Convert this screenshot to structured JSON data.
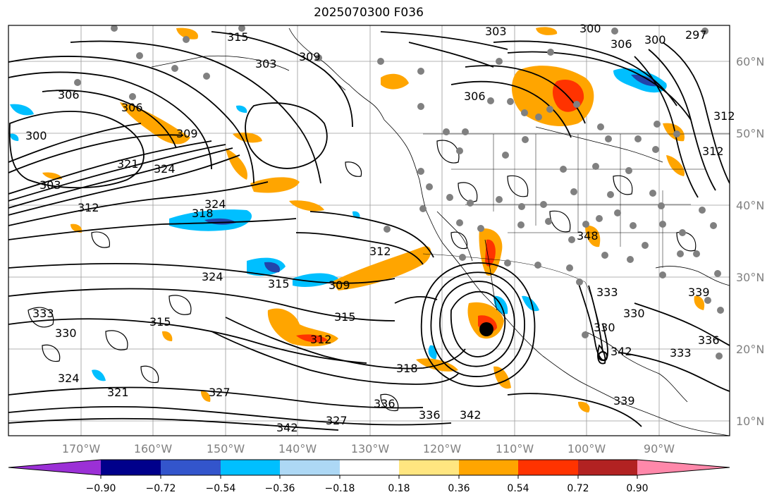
{
  "title": "2025070300 F036",
  "lon_labels": [
    "170°W",
    "160°W",
    "150°W",
    "140°W",
    "130°W",
    "120°W",
    "110°W",
    "100°W",
    "90°W"
  ],
  "lat_labels": [
    "60°N",
    "50°N",
    "40°N",
    "30°N",
    "20°N",
    "10°N"
  ],
  "colorbar": {
    "tick_labels": [
      "−0.90",
      "−0.72",
      "−0.54",
      "−0.36",
      "−0.18",
      "0.18",
      "0.36",
      "0.54",
      "0.72",
      "0.90"
    ],
    "colors": [
      "#9b30d6",
      "#00008b",
      "#3355cc",
      "#00bfff",
      "#add8f5",
      "#ffffff",
      "#ffe680",
      "#ffa500",
      "#ff3300",
      "#b22222",
      "#ff88aa"
    ]
  },
  "contour_labels": [
    "315",
    "303",
    "300",
    "297",
    "306",
    "300",
    "303",
    "309",
    "306",
    "306",
    "300",
    "309",
    "321",
    "324",
    "303",
    "324",
    "318",
    "312",
    "312",
    "309",
    "315",
    "324",
    "315",
    "333",
    "330",
    "312",
    "315",
    "318",
    "336",
    "327",
    "342",
    "336",
    "342",
    "321",
    "324",
    "327",
    "312",
    "306",
    "312",
    "348",
    "333",
    "339",
    "330",
    "336",
    "333",
    "339",
    "342",
    "330"
  ],
  "shading_colors": {
    "orange": "#ffa500",
    "red": "#ff3300",
    "blue": "#00bfff",
    "navy": "#2244aa"
  },
  "dot_color": "#808080"
}
